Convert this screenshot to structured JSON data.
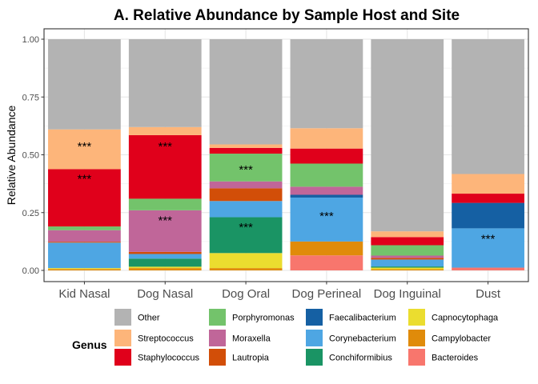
{
  "chart_data": {
    "type": "bar",
    "stacked": true,
    "title": "A. Relative Abundance by Sample Host and Site",
    "xlabel": "",
    "ylabel": "Relative Abundance",
    "ylim": [
      0,
      1
    ],
    "yticks": [
      "0.00",
      "0.25",
      "0.50",
      "0.75",
      "1.00"
    ],
    "grid": true,
    "legend_position": "bottom",
    "legend_title": "Genus",
    "categories": [
      "Kid Nasal",
      "Dog Nasal",
      "Dog Oral",
      "Dog Perineal",
      "Dog Inguinal",
      "Dust"
    ],
    "series": [
      {
        "name": "Bacteroides",
        "color": "#F8766D",
        "values": [
          0.0,
          0.0,
          0.0,
          0.065,
          0.0,
          0.012
        ]
      },
      {
        "name": "Campylobacter",
        "color": "#E08B0A",
        "values": [
          0.006,
          0.01,
          0.01,
          0.06,
          0.005,
          0.0
        ]
      },
      {
        "name": "Capnocytophaga",
        "color": "#EBDD2F",
        "values": [
          0.004,
          0.006,
          0.065,
          0.0,
          0.007,
          0.0
        ]
      },
      {
        "name": "Conchiformibius",
        "color": "#1A9464",
        "values": [
          0.0,
          0.035,
          0.155,
          0.0,
          0.005,
          0.0
        ]
      },
      {
        "name": "Corynebacterium",
        "color": "#4EA6E3",
        "values": [
          0.11,
          0.02,
          0.07,
          0.19,
          0.03,
          0.17
        ]
      },
      {
        "name": "Faecalibacterium",
        "color": "#1560A3",
        "values": [
          0.0,
          0.0,
          0.0,
          0.012,
          0.0,
          0.11
        ]
      },
      {
        "name": "Lautropia",
        "color": "#D24E08",
        "values": [
          0.004,
          0.009,
          0.055,
          0.0,
          0.007,
          0.0
        ]
      },
      {
        "name": "Moraxella",
        "color": "#C06699",
        "values": [
          0.05,
          0.18,
          0.03,
          0.035,
          0.01,
          0.0
        ]
      },
      {
        "name": "Porphyromonas",
        "color": "#73C36B",
        "values": [
          0.016,
          0.05,
          0.12,
          0.1,
          0.045,
          0.0
        ]
      },
      {
        "name": "Staphylococcus",
        "color": "#E0001B",
        "values": [
          0.248,
          0.275,
          0.025,
          0.065,
          0.035,
          0.04
        ]
      },
      {
        "name": "Streptococcus",
        "color": "#FDB57A",
        "values": [
          0.172,
          0.035,
          0.015,
          0.088,
          0.025,
          0.085
        ]
      },
      {
        "name": "Other",
        "color": "#B3B3B3",
        "values": [
          0.39,
          0.38,
          0.455,
          0.385,
          0.831,
          0.583
        ]
      }
    ],
    "annotations": [
      {
        "category": "Kid Nasal",
        "y": 0.55,
        "text": "***"
      },
      {
        "category": "Kid Nasal",
        "y": 0.41,
        "text": "***"
      },
      {
        "category": "Dog Nasal",
        "y": 0.55,
        "text": "***"
      },
      {
        "category": "Dog Nasal",
        "y": 0.23,
        "text": "***"
      },
      {
        "category": "Dog Oral",
        "y": 0.45,
        "text": "***"
      },
      {
        "category": "Dog Oral",
        "y": 0.2,
        "text": "***"
      },
      {
        "category": "Dog Perineal",
        "y": 0.25,
        "text": "***"
      },
      {
        "category": "Dust",
        "y": 0.15,
        "text": "***"
      }
    ],
    "legend_order": [
      "Other",
      "Streptococcus",
      "Staphylococcus",
      "Porphyromonas",
      "Moraxella",
      "Lautropia",
      "Faecalibacterium",
      "Corynebacterium",
      "Conchiformibius",
      "Capnocytophaga",
      "Campylobacter",
      "Bacteroides"
    ]
  }
}
